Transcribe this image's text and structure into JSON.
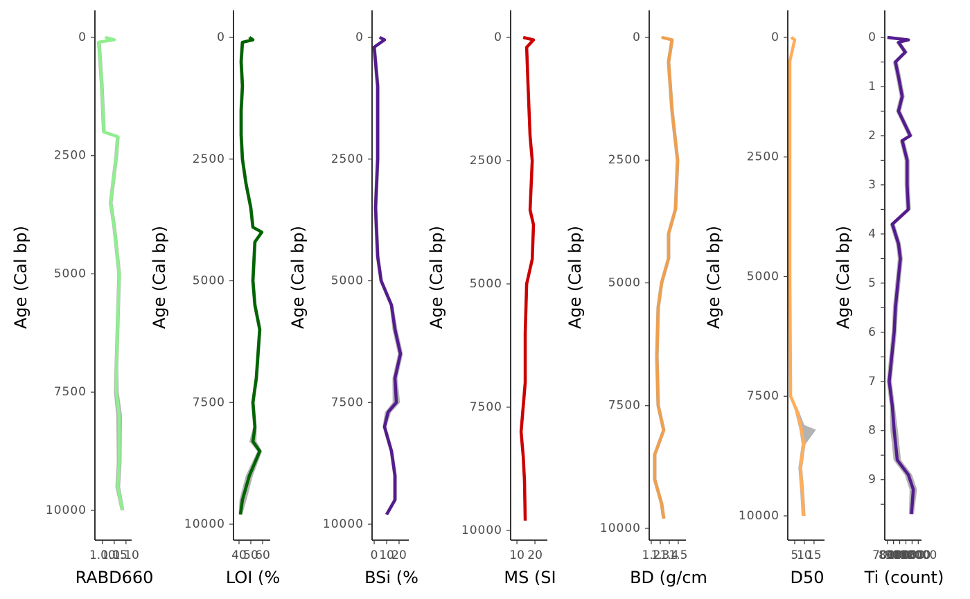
{
  "chart_data": [
    {
      "type": "line",
      "x_label": "RABD660",
      "y_label": "Age (Cal bp)",
      "color": "#90ee90",
      "band_color": "#b3b3b3",
      "ages": [
        0,
        50,
        100,
        1000,
        2000,
        2100,
        2500,
        3500,
        4000,
        5000,
        6000,
        7000,
        7500,
        8000,
        9000,
        9500,
        10000
      ],
      "values": [
        1.012,
        1.05,
        0.985,
        0.997,
        1.006,
        1.065,
        1.059,
        1.035,
        1.05,
        1.071,
        1.065,
        1.059,
        1.059,
        1.071,
        1.071,
        1.065,
        1.085
      ],
      "band_lower": [
        1.004,
        1.04,
        0.977,
        0.989,
        0.998,
        1.057,
        1.051,
        1.027,
        1.042,
        1.063,
        1.057,
        1.051,
        1.049,
        1.059,
        1.061,
        1.055,
        1.077
      ],
      "band_upper": [
        1.02,
        1.06,
        0.993,
        1.005,
        1.014,
        1.073,
        1.067,
        1.043,
        1.058,
        1.079,
        1.073,
        1.067,
        1.069,
        1.083,
        1.081,
        1.075,
        1.093
      ],
      "xlim": [
        0.968,
        1.124
      ],
      "xticks": [
        {
          "value": 1.0,
          "label": "1.00"
        },
        {
          "value": 1.05,
          "label": "1.05"
        },
        {
          "value": 1.1,
          "label": "1.10"
        }
      ],
      "ylim": [
        -571,
        10630
      ],
      "yticks": [
        0,
        2500,
        5000,
        7500,
        10000
      ]
    },
    {
      "type": "line",
      "x_label": "LOI (%",
      "y_label": "Age (Cal bp)",
      "color": "#006400",
      "band_color": "#b3b3b3",
      "ages": [
        0,
        50,
        100,
        500,
        1000,
        1500,
        2000,
        2500,
        3000,
        3500,
        3900,
        4000,
        4200,
        5000,
        5500,
        6000,
        7000,
        7500,
        8000,
        8300,
        8500,
        9000,
        9500,
        9800
      ],
      "values": [
        48.8,
        51.8,
        42.9,
        41.8,
        42.9,
        41.8,
        41.8,
        42.9,
        45.9,
        50,
        51.8,
        59.4,
        53.5,
        51.8,
        53.5,
        57.6,
        54.7,
        51.8,
        53.5,
        51.8,
        57.6,
        48.8,
        42.9,
        41.2
      ],
      "band_lower": [
        47.3,
        50.3,
        41.4,
        40.3,
        41.4,
        40.3,
        40.3,
        41.4,
        44.4,
        48.5,
        50.3,
        57.9,
        52,
        50.3,
        52,
        56.1,
        53.2,
        50.3,
        52,
        48.8,
        55.6,
        45.8,
        40.4,
        39.7
      ],
      "band_upper": [
        50.3,
        53.3,
        44.4,
        43.3,
        44.4,
        43.3,
        43.3,
        44.4,
        47.4,
        51.5,
        53.3,
        60.9,
        55,
        53.3,
        55,
        59.1,
        56.2,
        53.3,
        55,
        54.8,
        59.6,
        51.8,
        46.4,
        42.7
      ],
      "xlim": [
        35.3,
        66.5
      ],
      "xticks": [
        40,
        50,
        60
      ],
      "ylim": [
        -555,
        10327
      ],
      "yticks": [
        0,
        2500,
        5000,
        7500,
        10000
      ]
    },
    {
      "type": "line",
      "x_label": "BSi (%",
      "y_label": "Age (Cal bp)",
      "color": "#541c8e",
      "band_color": "#b3b3b3",
      "ages": [
        0,
        50,
        200,
        1000,
        2500,
        3500,
        4500,
        5000,
        5500,
        6000,
        6500,
        7000,
        7500,
        7700,
        8000,
        8500,
        9000,
        9500,
        9800
      ],
      "values": [
        4.4,
        8.3,
        0,
        2.8,
        2.8,
        1.1,
        2.8,
        5.6,
        13.9,
        16.7,
        21.1,
        16.7,
        17.8,
        11.1,
        8.3,
        13.9,
        16.7,
        16.7,
        10
      ],
      "band_lower": [
        2.9,
        6.8,
        -1.5,
        1.3,
        1.3,
        -0.4,
        1.3,
        4.1,
        12.4,
        14.7,
        19.1,
        14.7,
        14.8,
        8.6,
        6.8,
        12.4,
        15.2,
        15.2,
        8.5
      ],
      "band_upper": [
        5.9,
        9.8,
        1.5,
        4.3,
        4.3,
        2.6,
        4.3,
        7.1,
        15.4,
        18.7,
        23.1,
        18.7,
        20.8,
        13.6,
        9.8,
        15.4,
        18.2,
        18.2,
        11.5
      ],
      "xlim": [
        -1.7,
        27.8
      ],
      "xticks": [
        0,
        10,
        20
      ],
      "ylim": [
        -555,
        10327
      ],
      "yticks": [
        0,
        2500,
        5000,
        7500,
        10000
      ]
    },
    {
      "type": "line",
      "x_label": "MS (SI",
      "y_label": "Age (Cal bp)",
      "color": "#cc0000",
      "band_color": "#b3b3b3",
      "ages": [
        0,
        50,
        200,
        1000,
        2000,
        2500,
        3500,
        3800,
        4500,
        5000,
        6000,
        7000,
        8000,
        8500,
        9000,
        9800
      ],
      "values": [
        13.5,
        19.2,
        15.4,
        16.2,
        17.3,
        18.5,
        17.3,
        19.2,
        18.5,
        15.4,
        14.6,
        14.6,
        12.3,
        13.5,
        14.2,
        14.6
      ],
      "band_lower": [
        12.7,
        18.4,
        14.6,
        15.4,
        16.5,
        17.7,
        16.5,
        18.4,
        17.7,
        14.6,
        13.8,
        13.8,
        11.5,
        12.7,
        13.4,
        13.8
      ],
      "band_upper": [
        14.3,
        20,
        16.2,
        17,
        18.1,
        19.3,
        18.1,
        20,
        19.3,
        16.2,
        15.4,
        15.4,
        13.1,
        14.3,
        15,
        15.4
      ],
      "xlim": [
        6.5,
        26.9
      ],
      "xticks": [
        10,
        20
      ],
      "ylim": [
        -548,
        10197
      ],
      "yticks": [
        0,
        2500,
        5000,
        7500,
        10000
      ]
    },
    {
      "type": "line",
      "x_label": "BD (g/cm",
      "y_label": "Age (Cal bp)",
      "color": "#eea050",
      "band_color": "#b3b3b3",
      "ages": [
        0,
        50,
        500,
        1500,
        2500,
        3500,
        4000,
        4500,
        5000,
        5500,
        6500,
        7500,
        8000,
        8500,
        9000,
        9500,
        9800
      ],
      "values": [
        1.315,
        1.431,
        1.392,
        1.431,
        1.492,
        1.469,
        1.392,
        1.392,
        1.315,
        1.277,
        1.262,
        1.277,
        1.338,
        1.238,
        1.238,
        1.315,
        1.338
      ],
      "band_lower": [
        1.295,
        1.411,
        1.372,
        1.411,
        1.472,
        1.449,
        1.372,
        1.372,
        1.295,
        1.257,
        1.242,
        1.257,
        1.318,
        1.218,
        1.218,
        1.295,
        1.318
      ],
      "band_upper": [
        1.335,
        1.451,
        1.412,
        1.451,
        1.512,
        1.489,
        1.412,
        1.412,
        1.335,
        1.297,
        1.282,
        1.297,
        1.358,
        1.258,
        1.258,
        1.335,
        1.358
      ],
      "xlim": [
        1.177,
        1.585
      ],
      "xticks": [
        1.2,
        1.3,
        1.4,
        1.5
      ],
      "ylim": [
        -550,
        10240
      ],
      "yticks": [
        0,
        2500,
        5000,
        7500,
        10000
      ]
    },
    {
      "type": "line",
      "x_label": "D50",
      "y_label": "Age (Cal bp)",
      "color": "#ffad5a",
      "band_color": "#b3b3b3",
      "ages": [
        0,
        50,
        500,
        5000,
        7500,
        7800,
        8100,
        8200,
        8500,
        9000,
        9500,
        10000
      ],
      "values": [
        3.2,
        5,
        2.5,
        2.5,
        2.9,
        6.1,
        7.9,
        8.5,
        9.6,
        7.9,
        8.9,
        9.6
      ],
      "band_lower": [
        2.7,
        4.5,
        2,
        2,
        2.4,
        5.1,
        6.9,
        7.5,
        8.6,
        6.9,
        7.9,
        8.6
      ],
      "band_upper": [
        3.7,
        5.5,
        3,
        3,
        3.4,
        7.1,
        9.9,
        16,
        10.6,
        8.9,
        9.9,
        10.6
      ],
      "xlim": [
        1.43,
        20.4
      ],
      "xticks": [
        5,
        10,
        15
      ],
      "ylim": [
        -564,
        10507
      ],
      "yticks": [
        0,
        2500,
        5000,
        7500,
        10000
      ]
    },
    {
      "type": "line",
      "x_label": "Ti (count)",
      "y_label": "Age (Cal bp)",
      "color": "#541c8e",
      "band_color": "#b3b3b3",
      "ages": [
        0,
        0.05,
        0.1,
        0.3,
        0.5,
        0.8,
        1.2,
        1.5,
        2,
        2.1,
        2.5,
        3,
        3.5,
        3.8,
        4.2,
        4.5,
        5.5,
        6,
        7,
        7.5,
        8,
        8.6,
        8.9,
        9.2,
        9.7
      ],
      "values": [
        7000,
        10400,
        8800,
        9900,
        8300,
        8800,
        9400,
        8800,
        10700,
        9400,
        10200,
        10200,
        10400,
        7800,
        8800,
        9100,
        8300,
        8100,
        7300,
        7800,
        8100,
        8600,
        10400,
        11200,
        10900
      ],
      "band_lower": [
        6800,
        10000,
        8400,
        9500,
        7900,
        8400,
        9000,
        8400,
        10300,
        9000,
        9800,
        9800,
        10000,
        7400,
        8400,
        8700,
        7900,
        7700,
        6900,
        7400,
        7500,
        8000,
        9800,
        10600,
        10500
      ],
      "band_upper": [
        7200,
        10800,
        9200,
        10300,
        8700,
        9200,
        9800,
        9200,
        11100,
        9800,
        10600,
        10600,
        10800,
        8200,
        9200,
        9500,
        8700,
        8500,
        7700,
        8200,
        8700,
        9200,
        11000,
        11800,
        11300
      ],
      "xlim": [
        6579,
        12526
      ],
      "xticks": [
        7000,
        8000,
        9000,
        10000,
        11000,
        12000
      ],
      "ylim": [
        -0.55,
        10.23
      ],
      "yticks": [
        0,
        1,
        2,
        3,
        4,
        5,
        6,
        7,
        8,
        9
      ],
      "yminor": [
        0.5,
        1.5,
        2.5,
        3.5,
        4.5,
        5.5,
        6.5,
        7.5,
        8.5,
        9.5
      ]
    }
  ]
}
